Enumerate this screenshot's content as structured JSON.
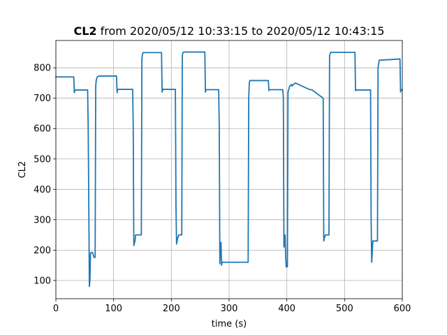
{
  "chart_data": {
    "type": "line",
    "title_bold": "CL2",
    "title_rest": " from 2020/05/12 10:33:15 to 2020/05/12 10:43:15",
    "xlabel": "time (s)",
    "ylabel": "CL2",
    "xlim": [
      0,
      600
    ],
    "ylim": [
      40,
      890
    ],
    "xticks": [
      0,
      100,
      200,
      300,
      400,
      500,
      600
    ],
    "yticks": [
      100,
      200,
      300,
      400,
      500,
      600,
      700,
      800
    ],
    "grid": true,
    "line_color": "#1f77b4",
    "series": [
      {
        "x": [
          0,
          31,
          32,
          33,
          55,
          56,
          57,
          58,
          59,
          60,
          62,
          64,
          66,
          67,
          68,
          69,
          70,
          72,
          75,
          105,
          106,
          107,
          133,
          134,
          135,
          137,
          138,
          140,
          148,
          149,
          150,
          151,
          153,
          183,
          184,
          185,
          187,
          207,
          208,
          209,
          211,
          213,
          218,
          219,
          220,
          222,
          258,
          259,
          260,
          263,
          282,
          283,
          284,
          285,
          286,
          287,
          288,
          289,
          333,
          334,
          335,
          336,
          338,
          368,
          369,
          370,
          393,
          394,
          395,
          396,
          397,
          398,
          399,
          400,
          401,
          402,
          405,
          408,
          409,
          411,
          415,
          440,
          441,
          443,
          463,
          464,
          465,
          467,
          473,
          474,
          476,
          518,
          519,
          521,
          545,
          546,
          547,
          549,
          556,
          557,
          558,
          560,
          595,
          596,
          597,
          598,
          600
        ],
        "y": [
          770,
          770,
          718,
          727,
          727,
          600,
          350,
          80,
          100,
          190,
          193,
          190,
          176,
          176,
          176,
          740,
          760,
          771,
          773,
          773,
          718,
          729,
          729,
          600,
          215,
          230,
          250,
          250,
          250,
          830,
          845,
          850,
          850,
          850,
          720,
          730,
          729,
          729,
          350,
          220,
          240,
          250,
          250,
          840,
          850,
          852,
          852,
          720,
          728,
          728,
          728,
          600,
          155,
          220,
          225,
          150,
          160,
          160,
          160,
          700,
          750,
          758,
          758,
          758,
          725,
          728,
          728,
          700,
          210,
          230,
          250,
          175,
          145,
          145,
          145,
          720,
          740,
          745,
          740,
          745,
          750,
          728,
          728,
          728,
          700,
          230,
          240,
          250,
          250,
          840,
          851,
          851,
          725,
          727,
          727,
          300,
          160,
          230,
          230,
          230,
          800,
          825,
          829,
          829,
          720,
          728,
          728
        ]
      }
    ]
  }
}
